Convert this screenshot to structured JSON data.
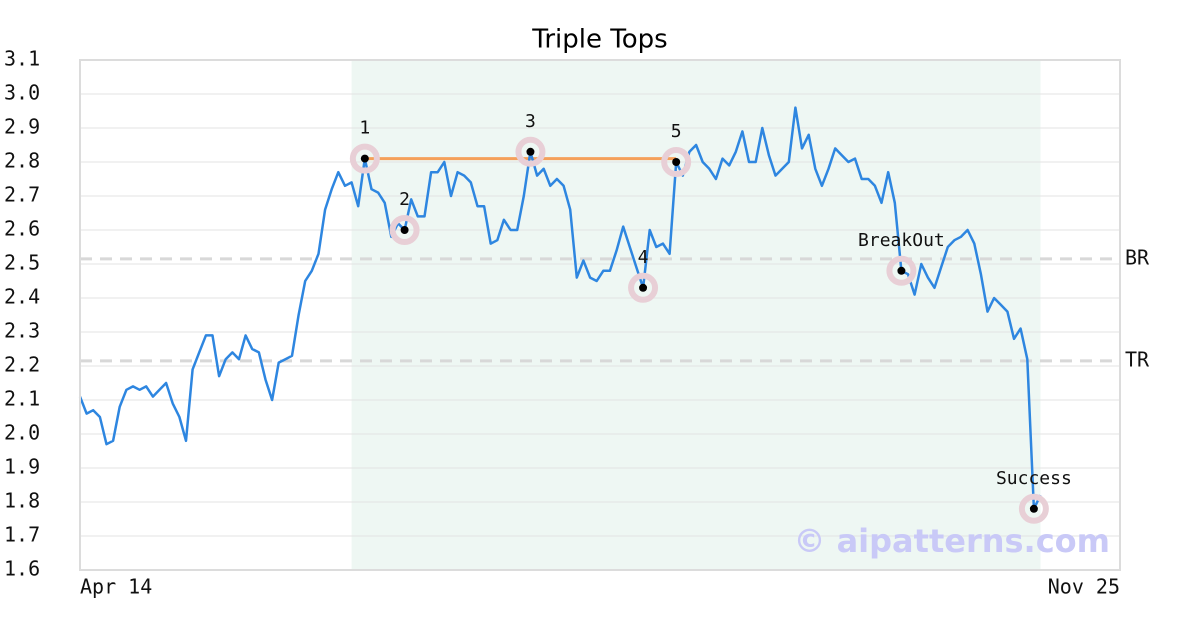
{
  "chart_data": {
    "type": "line",
    "title": "Triple Tops",
    "categories": [
      "Apr 14",
      null,
      null,
      null,
      null,
      null,
      null,
      null,
      null,
      null,
      null,
      null,
      null,
      null,
      null,
      null,
      null,
      null,
      null,
      null,
      null,
      null,
      null,
      null,
      null,
      null,
      null,
      null,
      null,
      null,
      null,
      null,
      null,
      null,
      null,
      null,
      null,
      null,
      null,
      null,
      null,
      null,
      null,
      null,
      null,
      null,
      null,
      null,
      null,
      null,
      null,
      null,
      null,
      null,
      null,
      null,
      null,
      null,
      null,
      null,
      null,
      null,
      null,
      null,
      null,
      null,
      null,
      null,
      null,
      null,
      null,
      null,
      null,
      null,
      null,
      null,
      null,
      null,
      null,
      null,
      null,
      null,
      null,
      null,
      null,
      null,
      null,
      null,
      null,
      null,
      null,
      null,
      null,
      null,
      null,
      null,
      null,
      null,
      null,
      null,
      null,
      null,
      null,
      null,
      null,
      null,
      null,
      null,
      null,
      null,
      null,
      null,
      null,
      null,
      null,
      null,
      null,
      null,
      null,
      null,
      null,
      null,
      null,
      null,
      null,
      null,
      null,
      null,
      null,
      null,
      null,
      null,
      null,
      null,
      null,
      null,
      null,
      null,
      null,
      null,
      null,
      null,
      null,
      null,
      null,
      null,
      null,
      null,
      null,
      null,
      null,
      null,
      null,
      null,
      null,
      null,
      null,
      "Nov 25"
    ],
    "series": [
      {
        "color": "#2e86e0",
        "values": [
          2.11,
          2.06,
          2.07,
          2.05,
          1.97,
          1.98,
          2.08,
          2.13,
          2.14,
          2.13,
          2.14,
          2.11,
          2.13,
          2.15,
          2.09,
          2.05,
          1.98,
          2.19,
          2.24,
          2.29,
          2.29,
          2.17,
          2.22,
          2.24,
          2.22,
          2.29,
          2.25,
          2.24,
          2.16,
          2.1,
          2.21,
          2.22,
          2.23,
          2.35,
          2.45,
          2.48,
          2.53,
          2.66,
          2.72,
          2.77,
          2.73,
          2.74,
          2.67,
          2.81,
          2.72,
          2.71,
          2.68,
          2.58,
          2.62,
          2.6,
          2.69,
          2.64,
          2.64,
          2.77,
          2.77,
          2.8,
          2.7,
          2.77,
          2.76,
          2.74,
          2.67,
          2.67,
          2.56,
          2.57,
          2.63,
          2.6,
          2.6,
          2.7,
          2.83,
          2.76,
          2.78,
          2.73,
          2.75,
          2.73,
          2.66,
          2.46,
          2.51,
          2.46,
          2.45,
          2.48,
          2.48,
          2.54,
          2.61,
          2.55,
          2.49,
          2.43,
          2.6,
          2.55,
          2.56,
          2.53,
          2.8,
          2.76,
          2.83,
          2.85,
          2.8,
          2.78,
          2.75,
          2.81,
          2.79,
          2.83,
          2.89,
          2.8,
          2.8,
          2.9,
          2.82,
          2.76,
          2.78,
          2.8,
          2.96,
          2.84,
          2.88,
          2.78,
          2.73,
          2.78,
          2.84,
          2.82,
          2.8,
          2.81,
          2.75,
          2.75,
          2.73,
          2.68,
          2.77,
          2.68,
          2.48,
          2.47,
          2.41,
          2.5,
          2.46,
          2.43,
          2.49,
          2.55,
          2.57,
          2.58,
          2.6,
          2.56,
          2.47,
          2.36,
          2.4,
          2.38,
          2.36,
          2.28,
          2.31,
          2.22,
          1.78,
          1.82,
          null,
          null,
          null,
          null,
          null,
          null,
          null,
          null,
          null,
          null,
          null,
          null
        ]
      }
    ],
    "ylim": [
      1.6,
      3.1
    ],
    "yticks": [
      1.6,
      1.7,
      1.8,
      1.9,
      {
        "value": 2,
        "label": "2.0"
      },
      2.1,
      2.2,
      2.3,
      2.4,
      2.5,
      2.6,
      2.7,
      2.8,
      2.9,
      {
        "value": 3,
        "label": "3.0"
      },
      3.1
    ],
    "grid": true,
    "shade": {
      "from": 41,
      "to": 145,
      "color": "#eef7f3"
    },
    "resistance": {
      "value": 2.81,
      "from": 43,
      "to": 90,
      "color": "#f5a05a"
    },
    "levels": [
      {
        "label": "BR",
        "value": 2.515
      },
      {
        "label": "TR",
        "value": 2.215
      }
    ],
    "points": [
      {
        "label": "1",
        "index": 43,
        "value": 2.81
      },
      {
        "label": "2",
        "index": 49,
        "value": 2.6
      },
      {
        "label": "3",
        "index": 68,
        "value": 2.83
      },
      {
        "label": "4",
        "index": 85,
        "value": 2.43
      },
      {
        "label": "5",
        "index": 90,
        "value": 2.8
      },
      {
        "label": "BreakOut",
        "index": 124,
        "value": 2.48
      },
      {
        "label": "Success",
        "index": 144,
        "value": 1.78
      }
    ],
    "watermark": "© aipatterns.com"
  }
}
